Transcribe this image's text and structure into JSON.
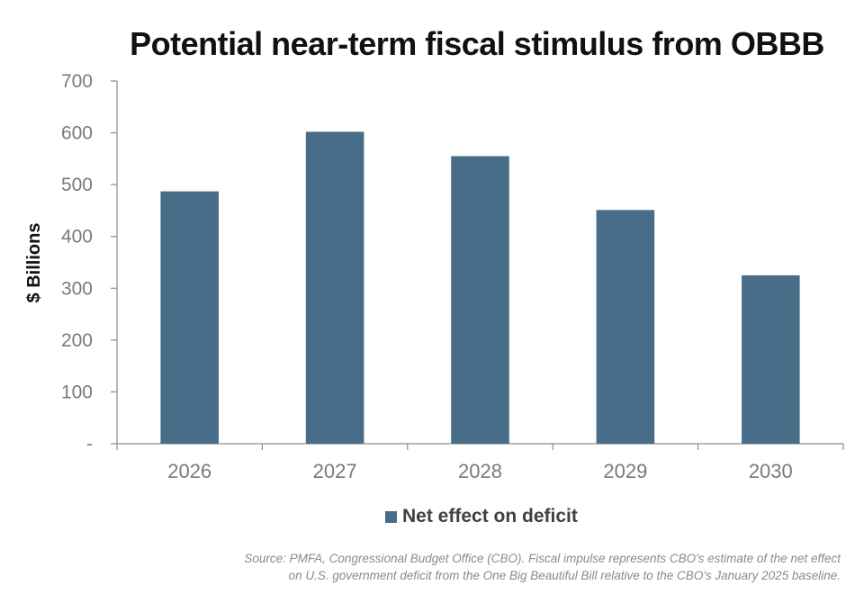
{
  "chart_data": {
    "type": "bar",
    "title": "Potential near-term fiscal stimulus from OBBB",
    "ylabel": "$ Billions",
    "xlabel": "",
    "categories": [
      "2026",
      "2027",
      "2028",
      "2029",
      "2030"
    ],
    "series": [
      {
        "name": "Net effect on deficit",
        "values": [
          487,
          602,
          555,
          451,
          325
        ]
      }
    ],
    "ylim": [
      0,
      700
    ],
    "yticks": [
      0,
      100,
      200,
      300,
      400,
      500,
      600,
      700
    ],
    "ytick_labels": [
      "-",
      "100",
      "200",
      "300",
      "400",
      "500",
      "600",
      "700"
    ],
    "grid": false,
    "legend_position": "bottom-center",
    "colors": {
      "bar": "#476d88",
      "axis": "#8c8c8c"
    }
  },
  "footnote": {
    "line1": "Source: PMFA, Congressional Budget Office (CBO). Fiscal impulse represents CBO's estimate of the net effect",
    "line2": "on U.S. government deficit from the One Big Beautiful Bill relative to the CBO's January 2025 baseline."
  }
}
